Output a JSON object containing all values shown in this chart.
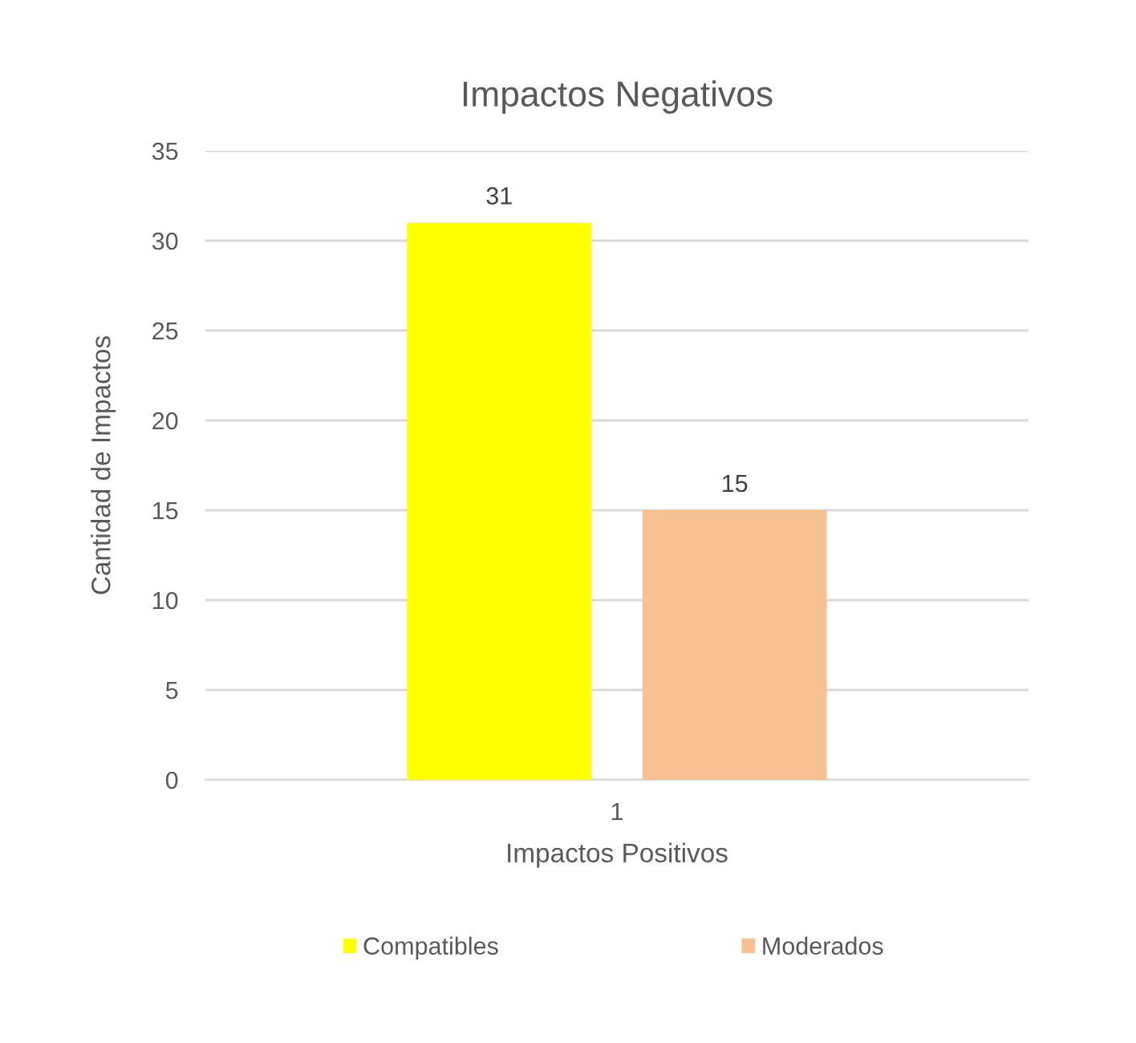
{
  "chart_data": {
    "type": "bar",
    "title": "Impactos Negativos",
    "xlabel": "Impactos Positivos",
    "ylabel": "Cantidad de Impactos",
    "categories": [
      "1"
    ],
    "series": [
      {
        "name": "Compatibles",
        "color": "#ffff00",
        "values": [
          31
        ]
      },
      {
        "name": "Moderados",
        "color": "#f8c191",
        "values": [
          15
        ]
      }
    ],
    "ylim": [
      0,
      35
    ],
    "yticks": [
      0,
      5,
      10,
      15,
      20,
      25,
      30,
      35
    ],
    "grid": "y",
    "legend": "bottom",
    "data_labels": true
  }
}
